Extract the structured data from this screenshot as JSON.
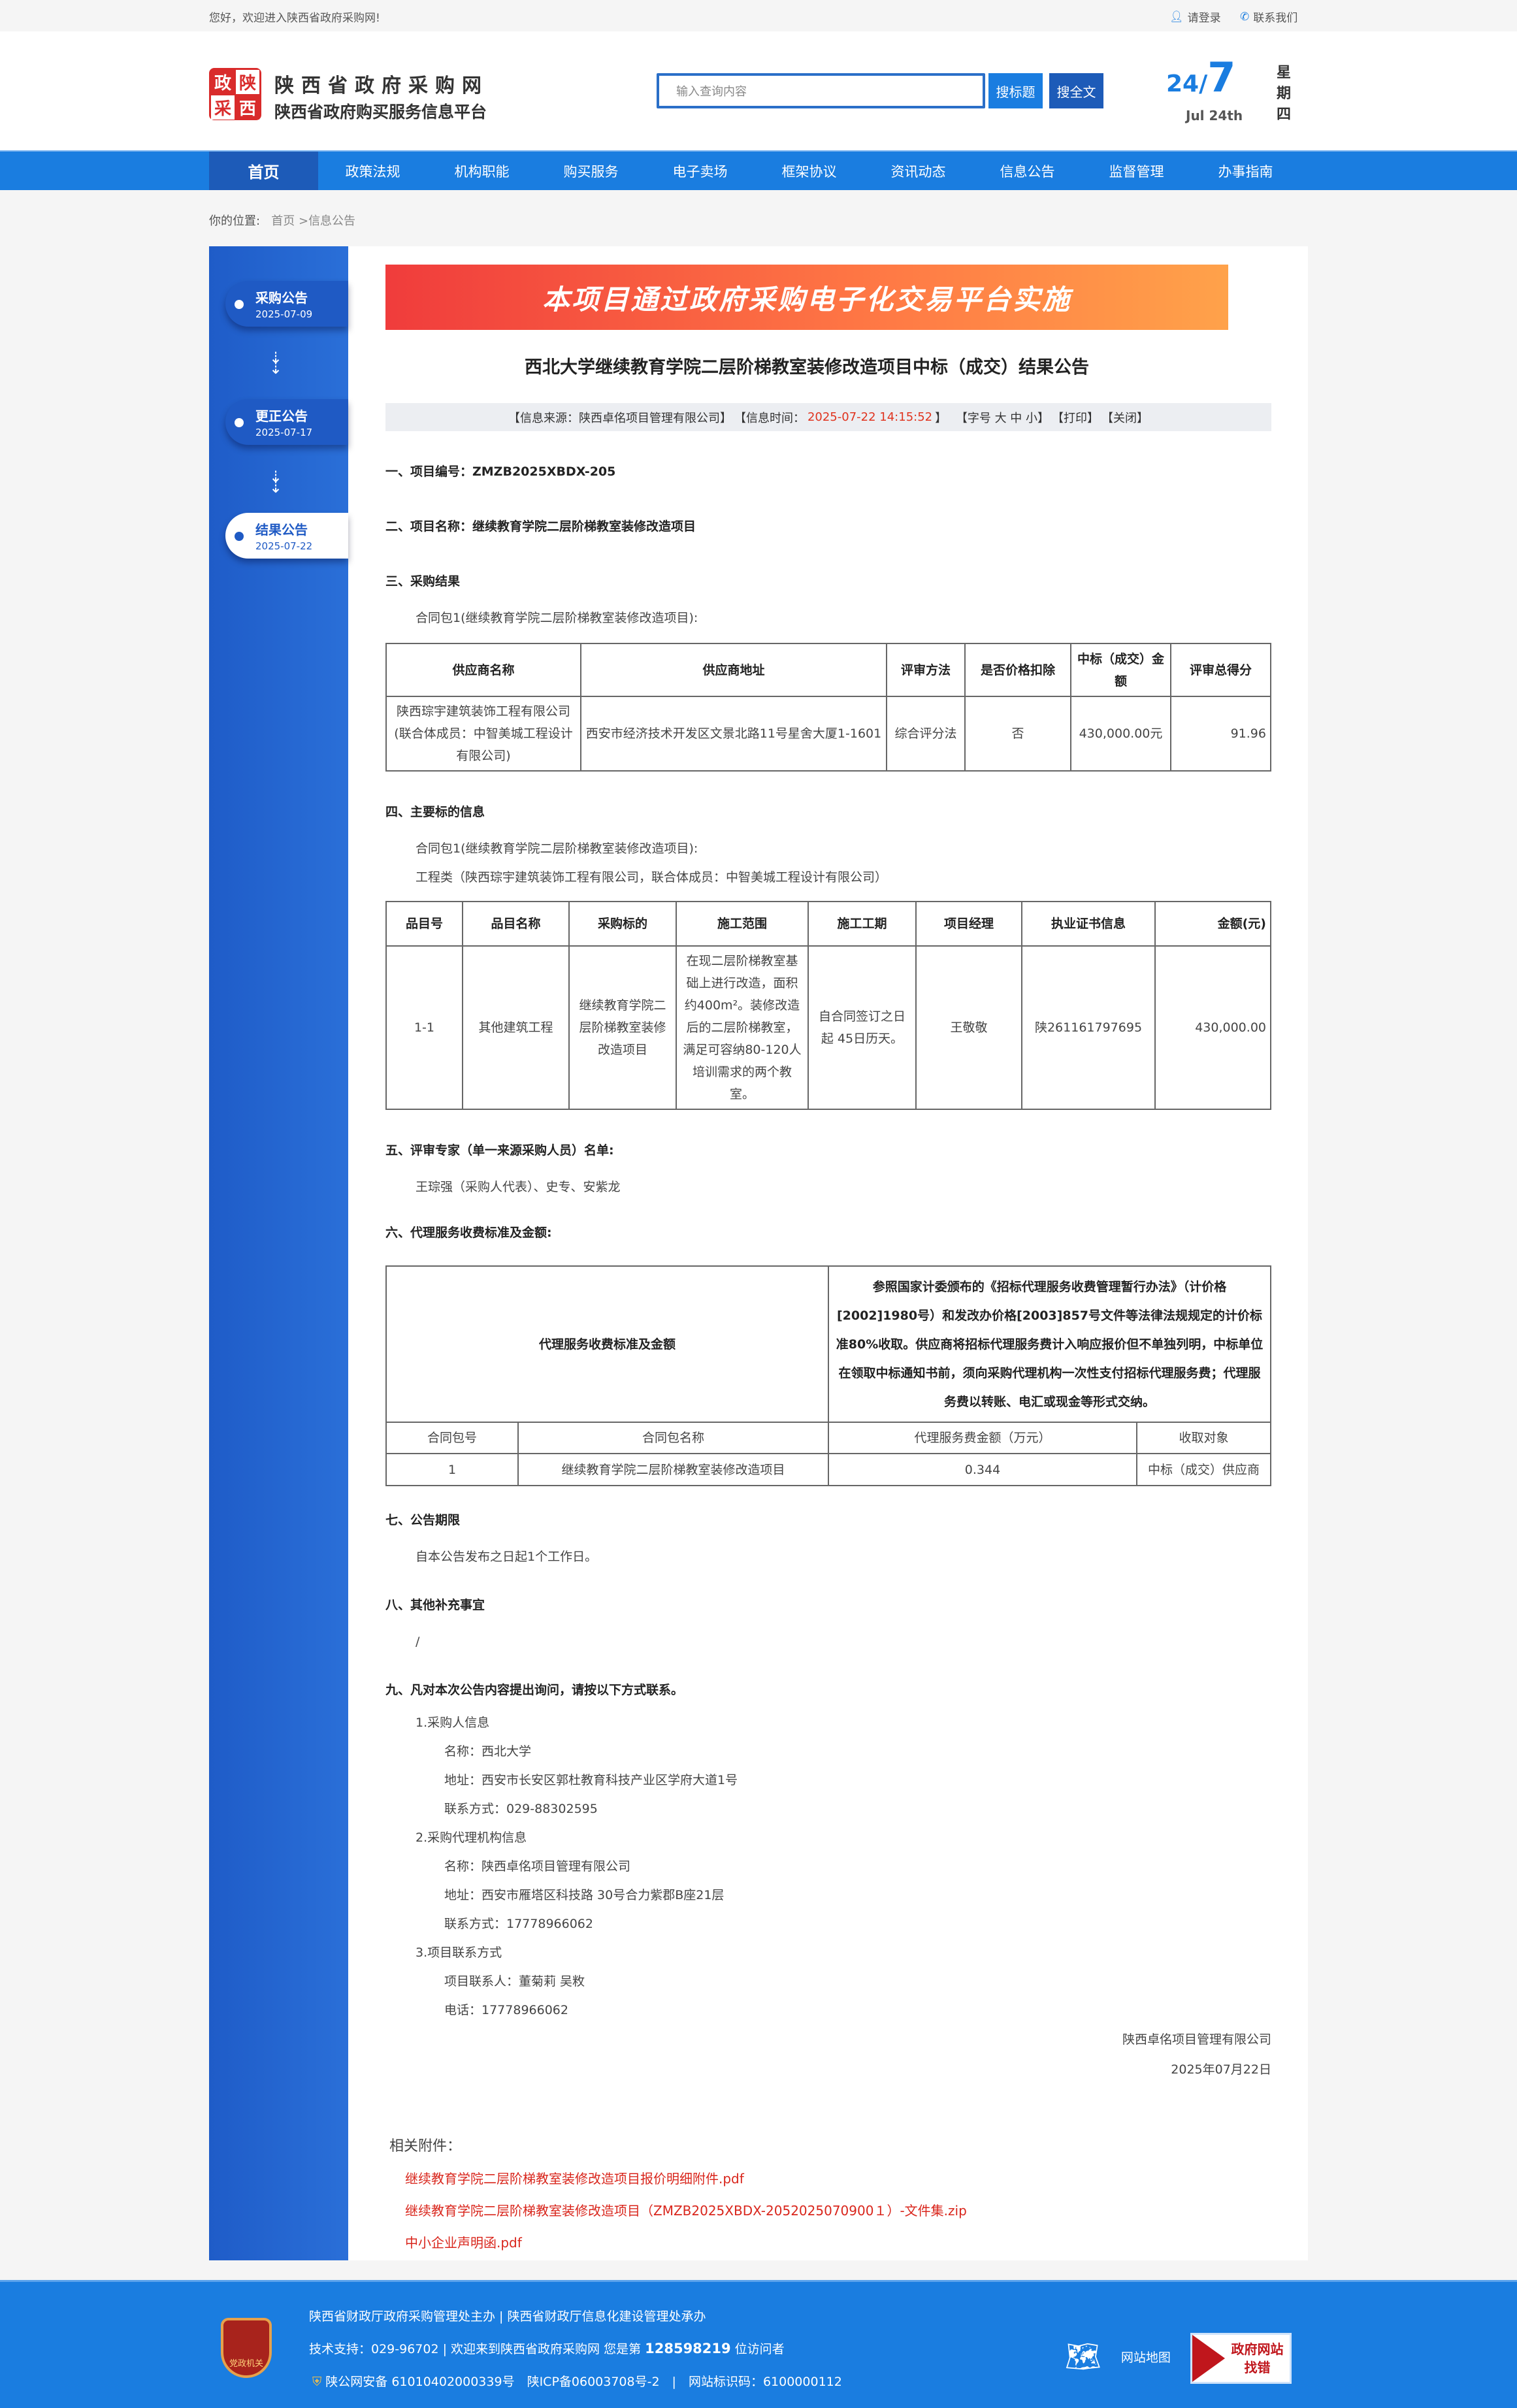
{
  "topbar": {
    "welcome": "您好，欢迎进入陕西省政府采购网!",
    "login": "请登录",
    "contact": "联系我们"
  },
  "header": {
    "logo_chars": [
      "政",
      "陕",
      "采",
      "西"
    ],
    "site_title": "陕西省政府采购网",
    "site_subtitle": "陕西省政府购买服务信息平台",
    "search_placeholder": "输入查询内容",
    "search_title_btn": "搜标题",
    "search_full_btn": "搜全文",
    "date_day": "24/",
    "date_month": "7",
    "date_en": "Jul 24th",
    "weekday": "星期四"
  },
  "nav": [
    "首页",
    "政策法规",
    "机构职能",
    "购买服务",
    "电子卖场",
    "框架协议",
    "资讯动态",
    "信息公告",
    "监督管理",
    "办事指南"
  ],
  "breadcrumb": {
    "label": "你的位置:",
    "home": "首页",
    "sep": " >",
    "current": "信息公告"
  },
  "sidebar": [
    {
      "title": "采购公告",
      "date": "2025-07-09",
      "active": false
    },
    {
      "title": "更正公告",
      "date": "2025-07-17",
      "active": false
    },
    {
      "title": "结果公告",
      "date": "2025-07-22",
      "active": true
    }
  ],
  "banner": "本项目通过政府采购电子化交易平台实施",
  "title": "西北大学继续教育学院二层阶梯教室装修改造项目中标（成交）结果公告",
  "info": {
    "source": "【信息来源：陕西卓佲项目管理有限公司】",
    "time_label": "【信息时间：",
    "time": "2025-07-22 14:15:52",
    "time_end": "】",
    "font": "【字号 大 中 小】",
    "print": "【打印】",
    "close": "【关闭】"
  },
  "sections": {
    "s1": "一、项目编号：ZMZB2025XBDX-205",
    "s2": "二、项目名称：继续教育学院二层阶梯教室装修改造项目",
    "s3": "三、采购结果",
    "s3_pkg": "合同包1(继续教育学院二层阶梯教室装修改造项目):",
    "s4": "四、主要标的信息",
    "s4_pkg": "合同包1(继续教育学院二层阶梯教室装修改造项目):",
    "s4_type": "工程类（陕西琮宇建筑装饰工程有限公司，联合体成员：中智美城工程设计有限公司）",
    "s5": "五、评审专家（单一来源采购人员）名单:",
    "s5_names": "王琮强（采购人代表）、史专、安紫龙",
    "s6": "六、代理服务收费标准及金额:",
    "s7": "七、公告期限",
    "s7_text": "自本公告发布之日起1个工作日。",
    "s8": "八、其他补充事宜",
    "s8_text": "/",
    "s9": "九、凡对本次公告内容提出询问，请按以下方式联系。"
  },
  "result_table": {
    "headers": [
      "供应商名称",
      "供应商地址",
      "评审方法",
      "是否价格扣除",
      "中标（成交）金额",
      "评审总得分"
    ],
    "row": [
      "陕西琮宇建筑装饰工程有限公司(联合体成员：中智美城工程设计有限公司)",
      "西安市经济技术开发区文景北路11号星舍大厦1-1601",
      "综合评分法",
      "否",
      "430,000.00元",
      "91.96"
    ]
  },
  "item_table": {
    "headers": [
      "品目号",
      "品目名称",
      "采购标的",
      "施工范围",
      "施工工期",
      "项目经理",
      "执业证书信息",
      "金额(元)"
    ],
    "row": [
      "1-1",
      "其他建筑工程",
      "继续教育学院二层阶梯教室装修改造项目",
      "在现二层阶梯教室基础上进行改造，面积约400m²。装修改造后的二层阶梯教室，满足可容纳80-120人培训需求的两个教室。",
      "自合同签订之日起 45日历天。",
      "王敬敬",
      "陕261161797695",
      "430,000.00"
    ]
  },
  "fee_table": {
    "label": "代理服务收费标准及金额",
    "description": "参照国家计委颁布的《招标代理服务收费管理暂行办法》（计价格[2002]1980号）和发改办价格[2003]857号文件等法律法规规定的计价标准80%收取。供应商将招标代理服务费计入响应报价但不单独列明，中标单位在领取中标通知书前，须向采购代理机构一次性支付招标代理服务费；代理服务费以转账、电汇或现金等形式交纳。",
    "headers": [
      "合同包号",
      "合同包名称",
      "代理服务费金额（万元）",
      "收取对象"
    ],
    "row": [
      "1",
      "继续教育学院二层阶梯教室装修改造项目",
      "0.344",
      "中标（成交）供应商"
    ]
  },
  "contacts": {
    "buyer_title": "1.采购人信息",
    "buyer_name": "名称：西北大学",
    "buyer_addr": "地址：西安市长安区郭杜教育科技产业区学府大道1号",
    "buyer_phone": "联系方式：029-88302595",
    "agent_title": "2.采购代理机构信息",
    "agent_name": "名称：陕西卓佲项目管理有限公司",
    "agent_addr": "地址：西安市雁塔区科技路 30号合力紫郡B座21层",
    "agent_phone": "联系方式：17778966062",
    "proj_title": "3.项目联系方式",
    "proj_person": "项目联系人：董菊莉 吴敉",
    "proj_phone": "电话：17778966062"
  },
  "signature": {
    "company": "陕西卓佲项目管理有限公司",
    "date": "2025年07月22日"
  },
  "attachments": {
    "title": "相关附件：",
    "files": [
      "继续教育学院二层阶梯教室装修改造项目报价明细附件.pdf",
      "继续教育学院二层阶梯教室装修改造项目（ZMZB2025XBDX-2052025070900１）-文件集.zip",
      "中小企业声明函.pdf"
    ]
  },
  "footer": {
    "badge": "党政机关",
    "line1": "陕西省财政厅政府采购管理处主办 | 陕西省财政厅信息化建设管理处承办",
    "line2_pre": "技术支持：029-96702 | 欢迎来到陕西省政府采购网 您是第 ",
    "visitors": "128598219",
    "line2_post": " 位访问者",
    "line3": "陕公网安备 61010402000339号　陕ICP备06003708号-2　|　网站标识码：6100000112",
    "sitemap": "网站地图",
    "find_error_1": "政府网站",
    "find_error_2": "找错"
  },
  "colors": {
    "brand_blue": "#1a7de0",
    "nav_active": "#1d5bb8",
    "accent_red": "#d9261c",
    "sidebar_blue": "#1f5cc8"
  }
}
